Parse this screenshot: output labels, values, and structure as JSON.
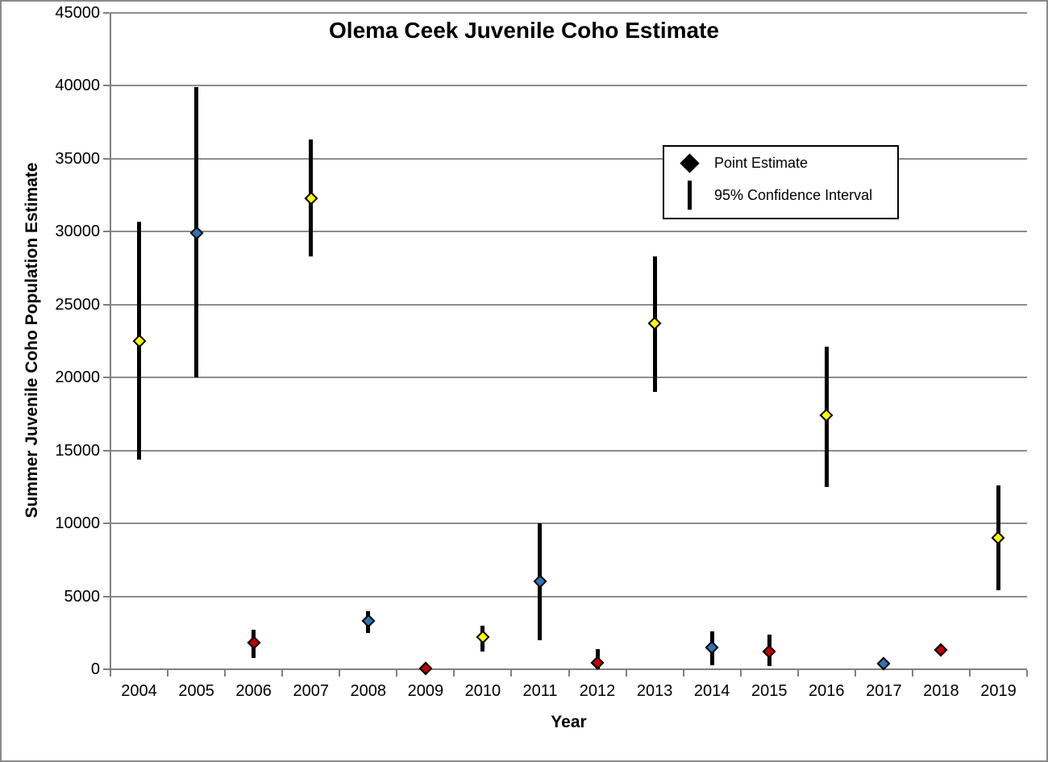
{
  "chart_data": {
    "type": "scatter",
    "title": "Olema Ceek Juvenile Coho Estimate",
    "xlabel": "Year",
    "ylabel": "Summer Juvenile Coho Population Estimate",
    "ylim": [
      0,
      45000
    ],
    "ytick_interval": 5000,
    "yticks": [
      45000,
      40000,
      35000,
      30000,
      25000,
      20000,
      15000,
      10000,
      5000,
      0
    ],
    "categories": [
      "2004",
      "2005",
      "2006",
      "2007",
      "2008",
      "2009",
      "2010",
      "2011",
      "2012",
      "2013",
      "2014",
      "2015",
      "2016",
      "2017",
      "2018",
      "2019"
    ],
    "grid": "horizontal",
    "legend": {
      "position": "inside-top-right",
      "items": [
        {
          "marker": "diamond",
          "label": "Point Estimate"
        },
        {
          "marker": "vertical-line",
          "label": "95% Confidence Interval"
        }
      ]
    },
    "series": [
      {
        "name": "Point Estimate with 95% Confidence Interval",
        "points": [
          {
            "year": "2004",
            "estimate": 22500,
            "ci_low": 14400,
            "ci_high": 30700,
            "color": "#FFFF00"
          },
          {
            "year": "2005",
            "estimate": 29900,
            "ci_low": 20000,
            "ci_high": 39900,
            "color": "#2E75B6"
          },
          {
            "year": "2006",
            "estimate": 1800,
            "ci_low": 800,
            "ci_high": 2700,
            "color": "#C00000"
          },
          {
            "year": "2007",
            "estimate": 32300,
            "ci_low": 28300,
            "ci_high": 36300,
            "color": "#FFFF00"
          },
          {
            "year": "2008",
            "estimate": 3300,
            "ci_low": 2500,
            "ci_high": 4000,
            "color": "#2E75B6"
          },
          {
            "year": "2009",
            "estimate": 50,
            "ci_low": null,
            "ci_high": null,
            "color": "#C00000"
          },
          {
            "year": "2010",
            "estimate": 2200,
            "ci_low": 1200,
            "ci_high": 3000,
            "color": "#FFFF00"
          },
          {
            "year": "2011",
            "estimate": 6000,
            "ci_low": 2000,
            "ci_high": 10000,
            "color": "#2E75B6"
          },
          {
            "year": "2012",
            "estimate": 450,
            "ci_low": 0,
            "ci_high": 1400,
            "color": "#C00000"
          },
          {
            "year": "2013",
            "estimate": 23700,
            "ci_low": 19000,
            "ci_high": 28300,
            "color": "#FFFF00"
          },
          {
            "year": "2014",
            "estimate": 1500,
            "ci_low": 300,
            "ci_high": 2600,
            "color": "#2E75B6"
          },
          {
            "year": "2015",
            "estimate": 1200,
            "ci_low": 200,
            "ci_high": 2400,
            "color": "#C00000"
          },
          {
            "year": "2016",
            "estimate": 17400,
            "ci_low": 12500,
            "ci_high": 22100,
            "color": "#FFFF00"
          },
          {
            "year": "2017",
            "estimate": 400,
            "ci_low": null,
            "ci_high": null,
            "color": "#2E75B6"
          },
          {
            "year": "2018",
            "estimate": 1300,
            "ci_low": null,
            "ci_high": null,
            "color": "#C00000"
          },
          {
            "year": "2019",
            "estimate": 9000,
            "ci_low": 5400,
            "ci_high": 12600,
            "color": "#FFFF00"
          }
        ]
      }
    ],
    "colors": {
      "marker_cycle": [
        "#FFFF00",
        "#2E75B6",
        "#C00000"
      ],
      "marker_outline": "#000000",
      "error_bar": "#000000",
      "gridline": "#8c8c8c",
      "axis": "#808080",
      "text": "#000000",
      "background": "#ffffff"
    }
  }
}
